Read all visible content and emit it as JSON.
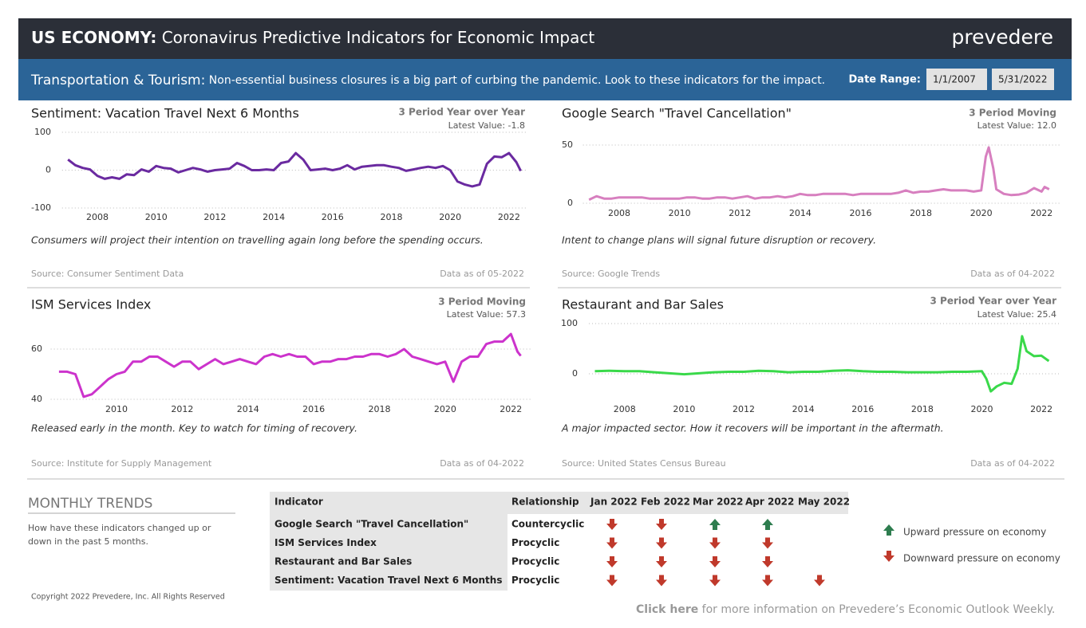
{
  "header": {
    "title_bold": "US ECONOMY:",
    "title_rest": " Coronavirus Predictive Indicators for Economic Impact",
    "logo": "prevedere"
  },
  "subheader": {
    "label": "Transportation & Tourism:",
    "text": "Non-essential business closures is a big part of curbing the pandemic.  Look to these indicators for the impact.",
    "date_range_label": "Date Range:",
    "start": "1/1/2007",
    "end": "5/31/2022"
  },
  "chart_data": [
    {
      "type": "line",
      "title": "Sentiment: Vacation Travel Next 6 Months",
      "subtitle": "3 Period Year over Year",
      "annotation": "Latest Value: -1.8",
      "description": "Consumers will project their intention on travelling again long before the spending occurs.",
      "source": "Source: Consumer Sentiment Data",
      "data_as_of": "Data as of 05-2022",
      "color": "#6a2aa0",
      "x": [
        2007,
        2007.25,
        2007.5,
        2007.75,
        2008,
        2008.25,
        2008.5,
        2008.75,
        2009,
        2009.25,
        2009.5,
        2009.75,
        2010,
        2010.25,
        2010.5,
        2010.75,
        2011,
        2011.25,
        2011.5,
        2011.75,
        2012,
        2012.25,
        2012.5,
        2012.75,
        2013,
        2013.25,
        2013.5,
        2013.75,
        2014,
        2014.25,
        2014.5,
        2014.75,
        2015,
        2015.25,
        2015.5,
        2015.75,
        2016,
        2016.25,
        2016.5,
        2016.75,
        2017,
        2017.25,
        2017.5,
        2017.75,
        2018,
        2018.25,
        2018.5,
        2018.75,
        2019,
        2019.25,
        2019.5,
        2019.75,
        2020,
        2020.25,
        2020.5,
        2020.75,
        2021,
        2021.25,
        2021.5,
        2021.75,
        2022,
        2022.25,
        2022.4
      ],
      "values": [
        28,
        13,
        6,
        2,
        -15,
        -23,
        -19,
        -23,
        -11,
        -13,
        2,
        -4,
        11,
        6,
        4,
        -6,
        0,
        6,
        2,
        -4,
        0,
        2,
        4,
        19,
        11,
        0,
        0,
        2,
        0,
        19,
        23,
        45,
        28,
        0,
        2,
        4,
        0,
        4,
        13,
        2,
        9,
        11,
        13,
        13,
        9,
        6,
        -2,
        2,
        6,
        9,
        6,
        11,
        0,
        -30,
        -38,
        -43,
        -38,
        17,
        36,
        34,
        45,
        21,
        -1.8
      ],
      "xlim": [
        2006.8,
        2022.6
      ],
      "xticks": [
        2008,
        2010,
        2012,
        2014,
        2016,
        2018,
        2020,
        2022
      ],
      "ylim": [
        -100,
        100
      ],
      "yticks": [
        100,
        0,
        -100
      ],
      "grid": true
    },
    {
      "type": "line",
      "title": "Google Search \"Travel Cancellation\"",
      "subtitle": "3 Period Moving",
      "annotation": "Latest Value: 12.0",
      "description": "Intent to change plans will signal future disruption or recovery.",
      "source": "Source: Google Trends",
      "data_as_of": "Data as of 04-2022",
      "color": "#d77fbf",
      "x": [
        2007,
        2007.25,
        2007.5,
        2007.75,
        2008,
        2008.25,
        2008.5,
        2008.75,
        2009,
        2009.25,
        2009.5,
        2009.75,
        2010,
        2010.25,
        2010.5,
        2010.75,
        2011,
        2011.25,
        2011.5,
        2011.75,
        2012,
        2012.25,
        2012.5,
        2012.75,
        2013,
        2013.25,
        2013.5,
        2013.75,
        2014,
        2014.25,
        2014.5,
        2014.75,
        2015,
        2015.25,
        2015.5,
        2015.75,
        2016,
        2016.25,
        2016.5,
        2016.75,
        2017,
        2017.25,
        2017.5,
        2017.75,
        2018,
        2018.25,
        2018.5,
        2018.75,
        2019,
        2019.25,
        2019.5,
        2019.75,
        2020,
        2020.15,
        2020.25,
        2020.4,
        2020.5,
        2020.75,
        2021,
        2021.25,
        2021.5,
        2021.75,
        2022,
        2022.1,
        2022.25
      ],
      "values": [
        3,
        6,
        4,
        4,
        5,
        5,
        5,
        5,
        4,
        4,
        4,
        4,
        4,
        5,
        5,
        4,
        4,
        5,
        5,
        4,
        5,
        6,
        4,
        5,
        5,
        6,
        5,
        6,
        8,
        7,
        7,
        8,
        8,
        8,
        8,
        7,
        8,
        8,
        8,
        8,
        8,
        9,
        11,
        9,
        10,
        10,
        11,
        12,
        11,
        11,
        11,
        10,
        11,
        40,
        48,
        30,
        12,
        8,
        7,
        7.5,
        9,
        13,
        10,
        14,
        12
      ],
      "xlim": [
        2006.8,
        2022.6
      ],
      "xticks": [
        2008,
        2010,
        2012,
        2014,
        2016,
        2018,
        2020,
        2022
      ],
      "ylim": [
        0,
        50
      ],
      "yticks": [
        50,
        0
      ],
      "grid": true
    },
    {
      "type": "line",
      "title": "ISM Services Index",
      "subtitle": "3 Period Moving",
      "annotation": "Latest Value: 57.3",
      "description": "Released early in the month.  Key to watch for timing of recovery.",
      "source": "Source: Institute for Supply Management",
      "data_as_of": "Data as of 04-2022",
      "color": "#cc33cc",
      "x": [
        2008.25,
        2008.5,
        2008.75,
        2009,
        2009.25,
        2009.5,
        2009.75,
        2010,
        2010.25,
        2010.5,
        2010.75,
        2011,
        2011.25,
        2011.5,
        2011.75,
        2012,
        2012.25,
        2012.5,
        2012.75,
        2013,
        2013.25,
        2013.5,
        2013.75,
        2014,
        2014.25,
        2014.5,
        2014.75,
        2015,
        2015.25,
        2015.5,
        2015.75,
        2016,
        2016.25,
        2016.5,
        2016.75,
        2017,
        2017.25,
        2017.5,
        2017.75,
        2018,
        2018.25,
        2018.5,
        2018.75,
        2019,
        2019.25,
        2019.5,
        2019.75,
        2020,
        2020.25,
        2020.5,
        2020.75,
        2021,
        2021.25,
        2021.5,
        2021.75,
        2022,
        2022.2,
        2022.3
      ],
      "values": [
        51,
        51,
        50,
        41,
        42,
        45,
        48,
        50,
        51,
        55,
        55,
        57,
        57,
        55,
        53,
        55,
        55,
        52,
        54,
        56,
        54,
        55,
        56,
        55,
        54,
        57,
        58,
        57,
        58,
        57,
        57,
        54,
        55,
        55,
        56,
        56,
        57,
        57,
        58,
        58,
        57,
        58,
        60,
        57,
        56,
        55,
        54,
        55,
        47,
        55,
        57,
        57,
        62,
        63,
        63,
        66,
        59,
        57.3
      ],
      "xlim": [
        2008,
        2022.6
      ],
      "xticks": [
        2010,
        2012,
        2014,
        2016,
        2018,
        2020,
        2022
      ],
      "ylim": [
        38,
        67
      ],
      "yticks": [
        60,
        40
      ],
      "grid": true
    },
    {
      "type": "line",
      "title": "Restaurant and Bar Sales",
      "subtitle": "3 Period Year over Year",
      "annotation": "Latest Value: 25.4",
      "description": "A major impacted sector.  How it recovers will be important in the aftermath.",
      "source": "Source: United States Census Bureau",
      "data_as_of": "Data as of 04-2022",
      "color": "#3ad94a",
      "x": [
        2007,
        2007.5,
        2008,
        2008.5,
        2009,
        2009.5,
        2010,
        2010.5,
        2011,
        2011.5,
        2012,
        2012.5,
        2013,
        2013.5,
        2014,
        2014.5,
        2015,
        2015.5,
        2016,
        2016.5,
        2017,
        2017.5,
        2018,
        2018.5,
        2019,
        2019.5,
        2020,
        2020.15,
        2020.3,
        2020.5,
        2020.75,
        2021,
        2021.2,
        2021.35,
        2021.5,
        2021.75,
        2022,
        2022.25
      ],
      "values": [
        5,
        6,
        5,
        5,
        3,
        1,
        -1,
        1,
        3,
        4,
        4,
        6,
        5,
        3,
        4,
        4,
        6,
        7,
        5,
        4,
        4,
        3,
        3,
        3,
        4,
        4,
        5,
        -10,
        -35,
        -25,
        -18,
        -20,
        10,
        75,
        45,
        35,
        36,
        25.4
      ],
      "xlim": [
        2006.8,
        2022.6
      ],
      "xticks": [
        2008,
        2010,
        2012,
        2014,
        2016,
        2018,
        2020,
        2022
      ],
      "ylim": [
        -40,
        100
      ],
      "yticks": [
        100,
        0
      ],
      "grid": true
    }
  ],
  "trends": {
    "title": "MONTHLY TRENDS",
    "description_lines": [
      "How have these indicators changed up or",
      "down in the past 5 months."
    ]
  },
  "table": {
    "header": [
      "Indicator",
      "Relationship",
      "Jan 2022",
      "Feb 2022",
      "Mar 2022",
      "Apr 2022",
      "May 2022"
    ],
    "rows": [
      {
        "indicator": "Google Search \"Travel Cancellation\"",
        "relationship": "Countercyclic",
        "trends": [
          "down",
          "down",
          "up",
          "up",
          null
        ]
      },
      {
        "indicator": "ISM Services Index",
        "relationship": "Procyclic",
        "trends": [
          "down",
          "down",
          "down",
          "down",
          null
        ]
      },
      {
        "indicator": "Restaurant and Bar Sales",
        "relationship": "Procyclic",
        "trends": [
          "down",
          "down",
          "down",
          "down",
          null
        ]
      },
      {
        "indicator": "Sentiment: Vacation Travel Next 6 Months",
        "relationship": "Procyclic",
        "trends": [
          "down",
          "down",
          "down",
          "down",
          "down"
        ]
      }
    ]
  },
  "legend": {
    "up": "Upward pressure on economy",
    "down": "Downward pressure on economy"
  },
  "footer": {
    "copyright": "Copyright 2022 Prevedere, Inc. All Rights Reserved",
    "link": "Click here",
    "link_rest": " for more information on Prevedere’s Economic Outlook Weekly."
  }
}
